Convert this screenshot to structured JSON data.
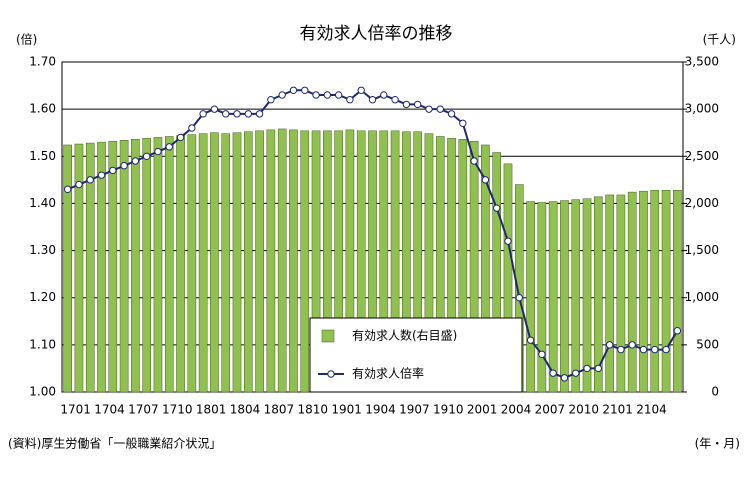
{
  "chart_data": {
    "type": "bar_line",
    "title": "有効求人倍率の推移",
    "y_unit": "(倍)",
    "y2_unit": "(千人)",
    "x_unit": "(年・月)",
    "source": "(資料)厚生労働省「一般職業紹介状況」",
    "categories": [
      "1701",
      null,
      null,
      "1704",
      null,
      null,
      "1707",
      null,
      null,
      "1710",
      null,
      null,
      "1801",
      null,
      null,
      "1804",
      null,
      null,
      "1807",
      null,
      null,
      "1810",
      null,
      null,
      "1901",
      null,
      null,
      "1904",
      null,
      null,
      "1907",
      null,
      null,
      "1910",
      null,
      null,
      "2001",
      null,
      null,
      "2004",
      null,
      null,
      "2007",
      null,
      null,
      "2010",
      null,
      null,
      "2101",
      null,
      null,
      "2104",
      null,
      null,
      null
    ],
    "series": [
      {
        "name": "有効求人数(右目盛)",
        "type": "bar",
        "axis": "y2",
        "color": "#92c050",
        "values": [
          2620,
          2630,
          2640,
          2650,
          2660,
          2670,
          2680,
          2690,
          2700,
          2710,
          2720,
          2730,
          2740,
          2750,
          2740,
          2750,
          2760,
          2770,
          2780,
          2790,
          2780,
          2770,
          2770,
          2770,
          2770,
          2780,
          2770,
          2770,
          2770,
          2770,
          2760,
          2760,
          2740,
          2710,
          2690,
          2680,
          2660,
          2620,
          2540,
          2420,
          2200,
          2020,
          2010,
          2020,
          2030,
          2040,
          2050,
          2070,
          2090,
          2090,
          2120,
          2130,
          2140,
          2140,
          2140
        ]
      },
      {
        "name": "有効求人倍率",
        "type": "line",
        "axis": "y",
        "color": "#1f2a6b",
        "values": [
          1.43,
          1.44,
          1.45,
          1.46,
          1.47,
          1.48,
          1.49,
          1.5,
          1.51,
          1.52,
          1.54,
          1.56,
          1.59,
          1.6,
          1.59,
          1.59,
          1.59,
          1.59,
          1.62,
          1.63,
          1.64,
          1.64,
          1.63,
          1.63,
          1.63,
          1.62,
          1.64,
          1.62,
          1.63,
          1.62,
          1.61,
          1.61,
          1.6,
          1.6,
          1.59,
          1.57,
          1.49,
          1.45,
          1.39,
          1.32,
          1.2,
          1.11,
          1.08,
          1.04,
          1.03,
          1.04,
          1.05,
          1.05,
          1.1,
          1.09,
          1.1,
          1.09,
          1.09,
          1.09,
          1.13
        ]
      }
    ],
    "ylim": [
      1.0,
      1.7
    ],
    "yticks": [
      {
        "value": 1.0,
        "label": "1.00"
      },
      {
        "value": 1.1,
        "label": "1.10"
      },
      {
        "value": 1.2,
        "label": "1.20"
      },
      {
        "value": 1.3,
        "label": "1.30"
      },
      {
        "value": 1.4,
        "label": "1.40"
      },
      {
        "value": 1.5,
        "label": "1.50"
      },
      {
        "value": 1.6,
        "label": "1.60"
      },
      {
        "value": 1.7,
        "label": "1.70"
      }
    ],
    "y2lim": [
      0,
      3500
    ],
    "y2ticks": [
      0,
      500,
      {
        "value": 1000,
        "label": "1,000"
      },
      {
        "value": 1500,
        "label": "1,500"
      },
      {
        "value": 2000,
        "label": "2,000"
      },
      {
        "value": 2500,
        "label": "2,500"
      },
      {
        "value": 3000,
        "label": "3,000"
      },
      {
        "value": 3500,
        "label": "3,500"
      }
    ],
    "grid": true
  }
}
